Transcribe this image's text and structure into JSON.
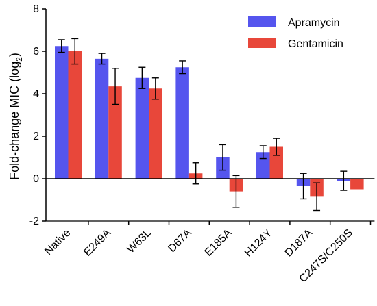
{
  "chart_data": {
    "type": "bar",
    "title": "",
    "xlabel": "",
    "ylabel": "Fold-change MIC (log",
    "ylabel_sub": "2",
    "ylabel_close": ")",
    "ylim": [
      -2,
      8
    ],
    "yticks": [
      -2,
      0,
      2,
      4,
      6,
      8
    ],
    "grid": false,
    "legend_position": "top-right",
    "categories": [
      "Native",
      "E249A",
      "W63L",
      "D67A",
      "E185A",
      "H124Y",
      "D187A",
      "C247S/C250S"
    ],
    "series": [
      {
        "name": "Apramycin",
        "color": "#5555ee",
        "values": [
          6.25,
          5.65,
          4.75,
          5.25,
          1.0,
          1.25,
          -0.35,
          -0.1
        ],
        "errors": [
          0.3,
          0.25,
          0.5,
          0.3,
          0.6,
          0.3,
          0.6,
          0.45
        ]
      },
      {
        "name": "Gentamicin",
        "color": "#e8473a",
        "values": [
          6.0,
          4.35,
          4.25,
          0.25,
          -0.6,
          1.5,
          -0.85,
          -0.5
        ],
        "errors": [
          0.6,
          0.85,
          0.5,
          0.5,
          0.75,
          0.4,
          0.65,
          0.0
        ]
      }
    ]
  }
}
